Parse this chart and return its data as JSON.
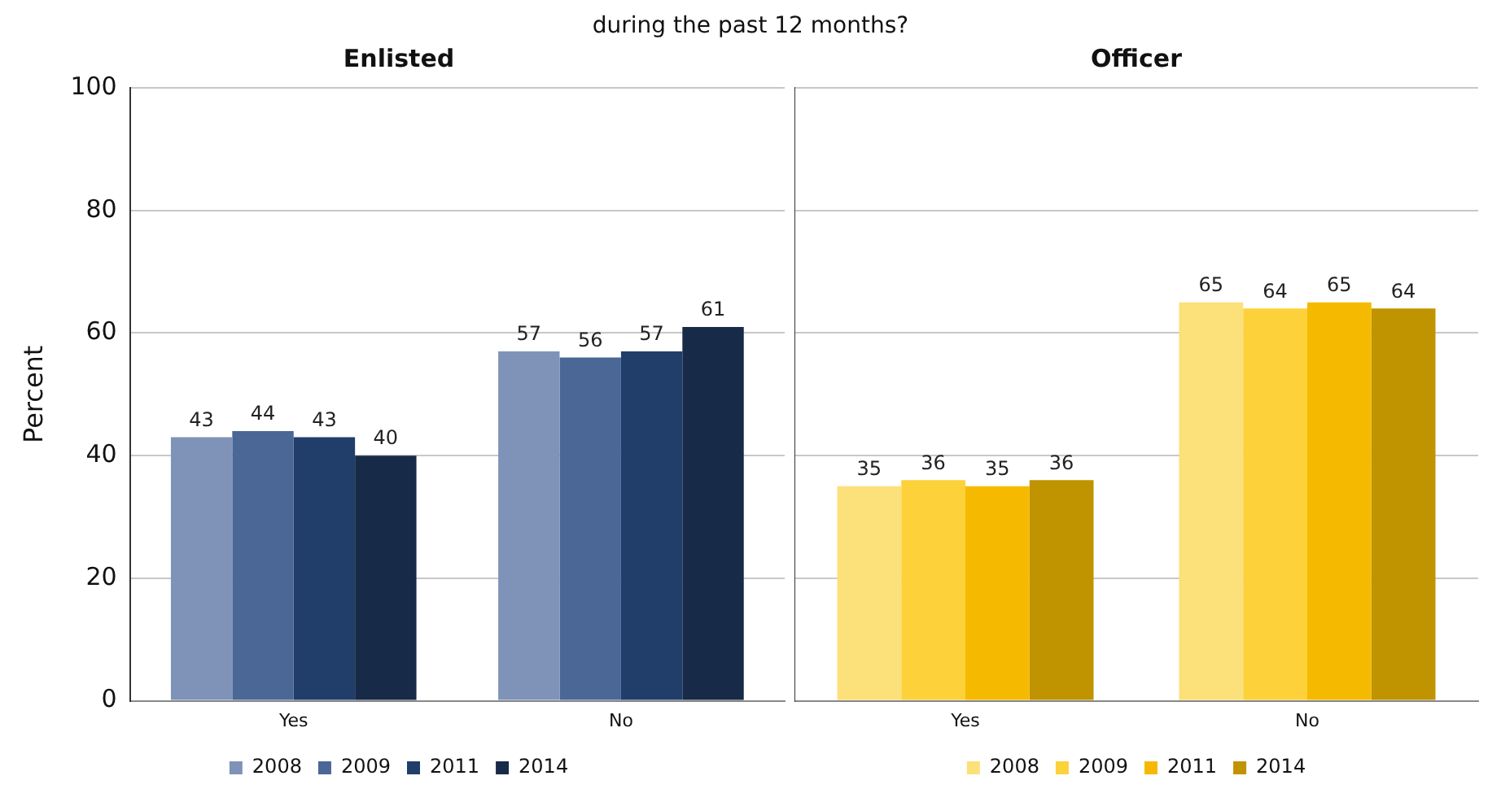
{
  "chart_data": [
    {
      "type": "bar",
      "title": "Enlisted",
      "annotations": [
        "during the past 12 months?"
      ],
      "ylabel": "Percent",
      "categories": [
        "Yes",
        "No"
      ],
      "ylim": [
        0,
        100
      ],
      "yticks": [
        0,
        20,
        40,
        60,
        80,
        100
      ],
      "grid": "y",
      "legend": "bottom",
      "data_labels": true,
      "series": [
        {
          "name": "2008",
          "color": "#7f93b8",
          "values": [
            43,
            57
          ]
        },
        {
          "name": "2009",
          "color": "#4a6796",
          "values": [
            44,
            56
          ]
        },
        {
          "name": "2011",
          "color": "#213e6b",
          "values": [
            43,
            57
          ]
        },
        {
          "name": "2014",
          "color": "#172a47",
          "values": [
            40,
            61
          ]
        }
      ]
    },
    {
      "type": "bar",
      "title": "Officer",
      "categories": [
        "Yes",
        "No"
      ],
      "ylim": [
        0,
        100
      ],
      "yticks": [
        0,
        20,
        40,
        60,
        80,
        100
      ],
      "tick_labels": "x",
      "grid": "y",
      "legend": "bottom",
      "data_labels": true,
      "series": [
        {
          "name": "2008",
          "color": "#fce07a",
          "values": [
            35,
            65
          ]
        },
        {
          "name": "2009",
          "color": "#fcd13a",
          "values": [
            36,
            64
          ]
        },
        {
          "name": "2011",
          "color": "#f5ba00",
          "values": [
            35,
            65
          ]
        },
        {
          "name": "2014",
          "color": "#c09300",
          "values": [
            36,
            64
          ]
        }
      ]
    }
  ]
}
